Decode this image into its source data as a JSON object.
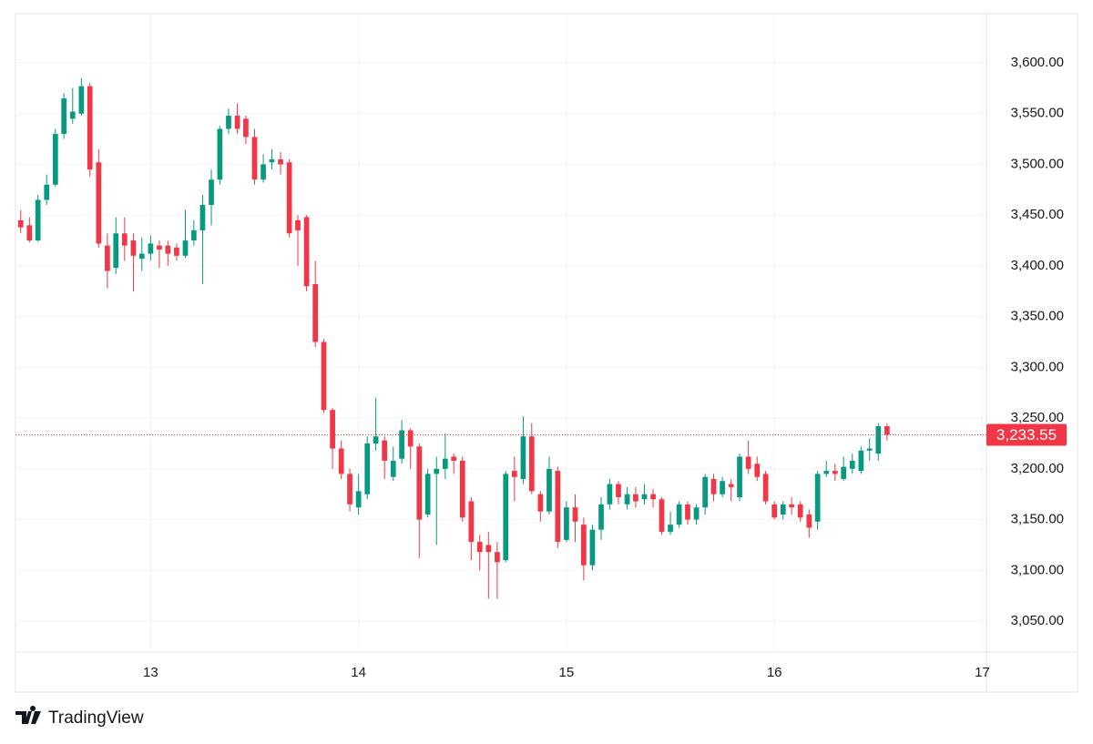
{
  "chart_data": {
    "type": "candlestick",
    "up_color": "#089981",
    "down_color": "#f23645",
    "xlim": [
      12.35,
      17.02
    ],
    "xticks": [
      13,
      14,
      15,
      16,
      17
    ],
    "ylim": [
      3019.5,
      3648.5
    ],
    "yticks": [
      {
        "value": 3050,
        "label": "3,050.00"
      },
      {
        "value": 3100,
        "label": "3,100.00"
      },
      {
        "value": 3150,
        "label": "3,150.00"
      },
      {
        "value": 3200,
        "label": "3,200.00"
      },
      {
        "value": 3250,
        "label": "3,250.00"
      },
      {
        "value": 3300,
        "label": "3,300.00"
      },
      {
        "value": 3350,
        "label": "3,350.00"
      },
      {
        "value": 3400,
        "label": "3,400.00"
      },
      {
        "value": 3450,
        "label": "3,450.00"
      },
      {
        "value": 3500,
        "label": "3,500.00"
      },
      {
        "value": 3550,
        "label": "3,550.00"
      },
      {
        "value": 3600,
        "label": "3,600.00"
      }
    ],
    "grid": true,
    "last_price": {
      "value": 3233.55,
      "label": "3,233.55"
    },
    "brand": "TradingView",
    "x": [
      12.375,
      12.417,
      12.458,
      12.5,
      12.542,
      12.583,
      12.625,
      12.667,
      12.708,
      12.75,
      12.792,
      12.833,
      12.875,
      12.917,
      12.958,
      13,
      13.042,
      13.083,
      13.125,
      13.167,
      13.208,
      13.25,
      13.292,
      13.333,
      13.375,
      13.417,
      13.458,
      13.5,
      13.542,
      13.583,
      13.625,
      13.667,
      13.708,
      13.75,
      13.792,
      13.833,
      13.875,
      13.917,
      13.958,
      14,
      14.042,
      14.083,
      14.125,
      14.167,
      14.208,
      14.25,
      14.292,
      14.333,
      14.375,
      14.417,
      14.458,
      14.5,
      14.542,
      14.583,
      14.625,
      14.667,
      14.708,
      14.75,
      14.792,
      14.833,
      14.875,
      14.917,
      14.958,
      15,
      15.042,
      15.083,
      15.125,
      15.167,
      15.208,
      15.25,
      15.292,
      15.333,
      15.375,
      15.417,
      15.458,
      15.5,
      15.542,
      15.583,
      15.625,
      15.667,
      15.708,
      15.75,
      15.792,
      15.833,
      15.875,
      15.917,
      15.958,
      16,
      16.042,
      16.083,
      16.125,
      16.167,
      16.208,
      16.25,
      16.292,
      16.333,
      16.375,
      16.417,
      16.458,
      16.5,
      16.542
    ],
    "open": [
      3445,
      3440,
      3425,
      3465,
      3480,
      3530,
      3545,
      3550,
      3577,
      3502,
      3420,
      3398,
      3432,
      3425,
      3407,
      3412,
      3420,
      3420,
      3418,
      3410,
      3425,
      3435,
      3460,
      3485,
      3535,
      3548,
      3545,
      3527,
      3485,
      3502,
      3505,
      3502,
      3445,
      3448,
      3382,
      3325,
      3258,
      3220,
      3195,
      3162,
      3175,
      3225,
      3228,
      3192,
      3210,
      3238,
      3222,
      3155,
      3195,
      3200,
      3212,
      3208,
      3168,
      3128,
      3125,
      3118,
      3110,
      3198,
      3190,
      3232,
      3175,
      3158,
      3198,
      3130,
      3162,
      3145,
      3105,
      3140,
      3165,
      3185,
      3165,
      3175,
      3170,
      3175,
      3170,
      3138,
      3145,
      3165,
      3150,
      3162,
      3190,
      3175,
      3185,
      3172,
      3212,
      3205,
      3195,
      3165,
      3155,
      3165,
      3165,
      3155,
      3148,
      3195,
      3198,
      3190,
      3200,
      3198,
      3218,
      3215,
      3242
    ],
    "high": [
      3455,
      3448,
      3470,
      3490,
      3535,
      3570,
      3575,
      3585,
      3580,
      3515,
      3432,
      3448,
      3448,
      3432,
      3428,
      3430,
      3425,
      3425,
      3422,
      3455,
      3445,
      3470,
      3495,
      3538,
      3555,
      3560,
      3548,
      3535,
      3510,
      3515,
      3512,
      3505,
      3450,
      3450,
      3405,
      3328,
      3260,
      3228,
      3200,
      3195,
      3232,
      3270,
      3232,
      3222,
      3248,
      3240,
      3225,
      3200,
      3212,
      3235,
      3215,
      3212,
      3172,
      3135,
      3138,
      3128,
      3198,
      3212,
      3252,
      3245,
      3178,
      3212,
      3202,
      3168,
      3175,
      3152,
      3145,
      3172,
      3190,
      3188,
      3182,
      3182,
      3185,
      3180,
      3172,
      3158,
      3168,
      3168,
      3165,
      3195,
      3195,
      3192,
      3190,
      3215,
      3228,
      3212,
      3198,
      3168,
      3168,
      3172,
      3168,
      3160,
      3198,
      3208,
      3205,
      3212,
      3215,
      3222,
      3230,
      3245,
      3245
    ],
    "low": [
      3432,
      3423,
      3424,
      3460,
      3478,
      3525,
      3540,
      3548,
      3488,
      3418,
      3378,
      3392,
      3405,
      3375,
      3395,
      3405,
      3398,
      3400,
      3405,
      3408,
      3420,
      3382,
      3440,
      3480,
      3530,
      3530,
      3520,
      3480,
      3482,
      3495,
      3490,
      3428,
      3400,
      3375,
      3320,
      3255,
      3200,
      3190,
      3158,
      3155,
      3170,
      3218,
      3190,
      3188,
      3205,
      3200,
      3112,
      3152,
      3125,
      3190,
      3195,
      3148,
      3110,
      3100,
      3072,
      3072,
      3108,
      3168,
      3185,
      3175,
      3148,
      3155,
      3122,
      3128,
      3128,
      3090,
      3100,
      3130,
      3160,
      3165,
      3160,
      3162,
      3165,
      3162,
      3135,
      3135,
      3142,
      3145,
      3145,
      3155,
      3168,
      3172,
      3168,
      3168,
      3195,
      3188,
      3165,
      3150,
      3150,
      3155,
      3148,
      3132,
      3140,
      3192,
      3188,
      3188,
      3195,
      3195,
      3208,
      3208,
      3228
    ],
    "close": [
      3438,
      3425,
      3465,
      3480,
      3530,
      3565,
      3552,
      3577,
      3495,
      3422,
      3395,
      3432,
      3420,
      3410,
      3412,
      3422,
      3416,
      3412,
      3410,
      3425,
      3435,
      3460,
      3485,
      3535,
      3548,
      3535,
      3527,
      3485,
      3500,
      3505,
      3500,
      3432,
      3435,
      3380,
      3325,
      3258,
      3220,
      3195,
      3165,
      3178,
      3225,
      3232,
      3208,
      3208,
      3238,
      3222,
      3150,
      3195,
      3200,
      3210,
      3208,
      3152,
      3128,
      3118,
      3118,
      3108,
      3195,
      3192,
      3232,
      3178,
      3158,
      3200,
      3128,
      3162,
      3148,
      3105,
      3140,
      3165,
      3185,
      3172,
      3175,
      3168,
      3175,
      3170,
      3138,
      3145,
      3165,
      3150,
      3162,
      3192,
      3175,
      3188,
      3182,
      3212,
      3200,
      3192,
      3168,
      3152,
      3165,
      3162,
      3152,
      3142,
      3195,
      3198,
      3195,
      3202,
      3208,
      3218,
      3220,
      3242,
      3233.55
    ]
  }
}
